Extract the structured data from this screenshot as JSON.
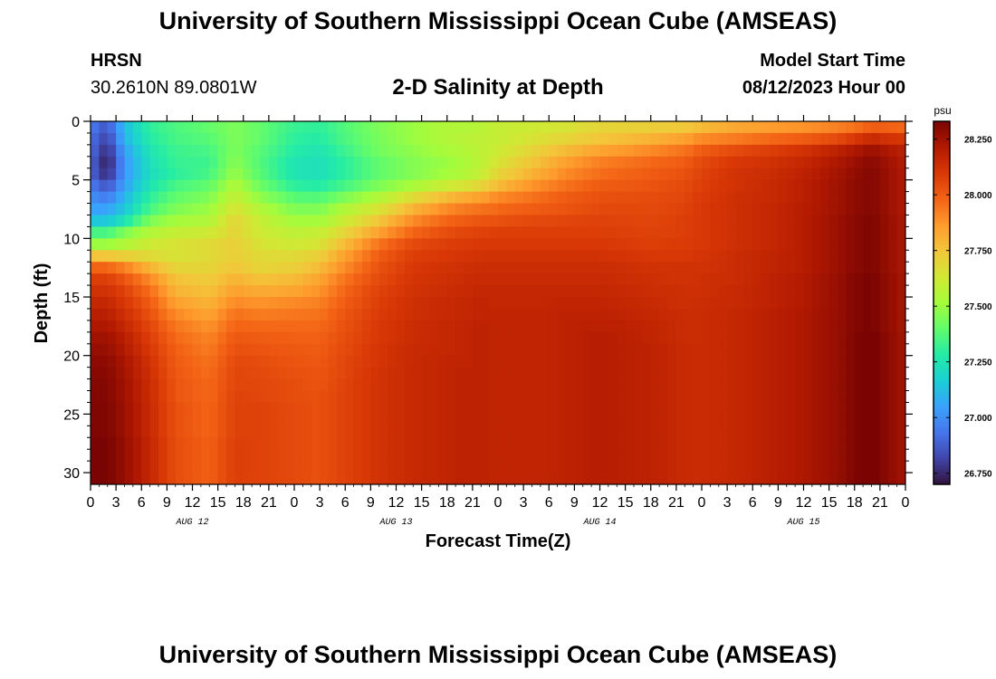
{
  "header": {
    "title": "University of Southern Mississippi Ocean Cube (AMSEAS)",
    "station": "HRSN",
    "coordinates": "30.2610N  89.0801W",
    "subtitle": "2-D Salinity at Depth",
    "model_start_label": "Model Start Time",
    "model_start_value": "08/12/2023 Hour 00"
  },
  "footer": {
    "title": "University of Southern Mississippi Ocean Cube (AMSEAS)"
  },
  "chart_data": {
    "type": "heatmap",
    "title": "2-D Salinity at Depth",
    "xlabel": "Forecast Time(Z)",
    "ylabel": "Depth (ft)",
    "x_tick_labels": [
      "0",
      "3",
      "6",
      "9",
      "12",
      "15",
      "18",
      "21",
      "0",
      "3",
      "6",
      "9",
      "12",
      "15",
      "18",
      "21",
      "0",
      "3",
      "6",
      "9",
      "12",
      "15",
      "18",
      "21",
      "0",
      "3",
      "6",
      "9",
      "12",
      "15",
      "18",
      "21",
      "0"
    ],
    "x_range_hours": [
      0,
      96
    ],
    "date_labels": [
      {
        "label": "AUG 12",
        "hour": 12
      },
      {
        "label": "AUG 13",
        "hour": 36
      },
      {
        "label": "AUG 14",
        "hour": 60
      },
      {
        "label": "AUG 15",
        "hour": 84
      }
    ],
    "y_ticks": [
      "0",
      "5",
      "10",
      "15",
      "20",
      "25",
      "30"
    ],
    "y_range_ft": [
      0,
      31
    ],
    "y_inverted": true,
    "colorbar": {
      "unit": "psu",
      "range": [
        26.7,
        28.33
      ],
      "ticks": [
        "28.250",
        "28.000",
        "27.750",
        "27.500",
        "27.250",
        "27.000",
        "26.750"
      ],
      "colors": [
        "#30123b",
        "#4145ab",
        "#4675ed",
        "#39a2fc",
        "#1bcfd4",
        "#24eca6",
        "#61fc6c",
        "#a4fc3b",
        "#d1e834",
        "#f3c63a",
        "#fe9b2d",
        "#f36315",
        "#d93806",
        "#b11901",
        "#7a0403"
      ]
    },
    "series_hours": [
      0,
      2,
      4,
      7,
      10,
      14,
      17,
      20,
      24,
      27,
      30,
      34,
      38,
      42,
      44,
      46,
      48,
      52,
      56,
      60,
      66,
      70,
      72,
      76,
      80,
      84,
      88,
      90,
      92,
      94,
      96
    ],
    "depths_ft": [
      0,
      1,
      2,
      3,
      4,
      5,
      6,
      7,
      8,
      9,
      10,
      11,
      12,
      13,
      14,
      15,
      16,
      17,
      18,
      19,
      20,
      21,
      22,
      23,
      24,
      25,
      26,
      27,
      28,
      29,
      30,
      31
    ],
    "salinity_psu": [
      [
        26.95,
        26.85,
        27.12,
        27.3,
        27.36,
        27.4,
        27.45,
        27.4,
        27.32,
        27.3,
        27.37,
        27.45,
        27.5,
        27.55,
        27.55,
        27.57,
        27.6,
        27.62,
        27.65,
        27.7,
        27.72,
        27.74,
        27.78,
        27.83,
        27.86,
        27.88,
        27.92,
        27.95,
        28.0,
        27.99,
        27.97
      ],
      [
        26.93,
        26.8,
        27.1,
        27.28,
        27.35,
        27.38,
        27.45,
        27.4,
        27.3,
        27.28,
        27.36,
        27.44,
        27.5,
        27.55,
        27.57,
        27.58,
        27.6,
        27.65,
        27.7,
        27.75,
        27.8,
        27.85,
        27.9,
        27.93,
        27.97,
        28.0,
        28.05,
        28.1,
        28.15,
        28.12,
        28.1
      ],
      [
        26.92,
        26.75,
        27.05,
        27.25,
        27.33,
        27.35,
        27.45,
        27.38,
        27.28,
        27.25,
        27.33,
        27.43,
        27.48,
        27.53,
        27.55,
        27.58,
        27.62,
        27.7,
        27.78,
        27.84,
        27.9,
        27.95,
        28.0,
        28.05,
        28.08,
        28.12,
        28.18,
        28.22,
        28.26,
        28.22,
        28.18
      ],
      [
        26.9,
        26.72,
        27.02,
        27.23,
        27.32,
        27.33,
        27.47,
        27.37,
        27.25,
        27.23,
        27.3,
        27.4,
        27.46,
        27.5,
        27.53,
        27.58,
        27.65,
        27.75,
        27.85,
        27.92,
        27.97,
        28.0,
        28.05,
        28.1,
        28.12,
        28.16,
        28.22,
        28.26,
        28.3,
        28.25,
        28.2
      ],
      [
        26.9,
        26.75,
        27.02,
        27.22,
        27.3,
        27.35,
        27.5,
        27.38,
        27.25,
        27.23,
        27.3,
        27.4,
        27.46,
        27.52,
        27.55,
        27.6,
        27.7,
        27.8,
        27.9,
        27.96,
        28.0,
        28.03,
        28.07,
        28.12,
        28.14,
        28.18,
        28.24,
        28.28,
        28.31,
        28.26,
        28.21
      ],
      [
        26.95,
        26.85,
        27.05,
        27.25,
        27.35,
        27.4,
        27.55,
        27.42,
        27.3,
        27.28,
        27.35,
        27.45,
        27.53,
        27.62,
        27.65,
        27.7,
        27.78,
        27.88,
        27.95,
        28.0,
        28.02,
        28.05,
        28.08,
        28.12,
        28.15,
        28.19,
        28.25,
        28.29,
        28.31,
        28.26,
        28.21
      ],
      [
        27.0,
        26.95,
        27.1,
        27.3,
        27.4,
        27.45,
        27.6,
        27.48,
        27.38,
        27.37,
        27.45,
        27.55,
        27.68,
        27.78,
        27.82,
        27.85,
        27.9,
        27.95,
        28.0,
        28.03,
        28.04,
        28.06,
        28.09,
        28.13,
        28.15,
        28.19,
        28.25,
        28.29,
        28.31,
        28.26,
        28.21
      ],
      [
        27.05,
        27.05,
        27.15,
        27.35,
        27.45,
        27.5,
        27.65,
        27.55,
        27.45,
        27.45,
        27.55,
        27.65,
        27.8,
        27.9,
        27.93,
        27.95,
        27.97,
        28.0,
        28.02,
        28.05,
        28.05,
        28.07,
        28.1,
        28.13,
        28.16,
        28.2,
        28.25,
        28.29,
        28.31,
        28.26,
        28.21
      ],
      [
        27.15,
        27.15,
        27.25,
        27.45,
        27.52,
        27.55,
        27.7,
        27.6,
        27.52,
        27.52,
        27.62,
        27.75,
        27.9,
        27.98,
        28.0,
        28.02,
        28.03,
        28.05,
        28.06,
        28.07,
        28.06,
        28.08,
        28.1,
        28.13,
        28.16,
        28.2,
        28.26,
        28.3,
        28.32,
        28.27,
        28.22
      ],
      [
        27.35,
        27.35,
        27.45,
        27.55,
        27.6,
        27.62,
        27.7,
        27.62,
        27.58,
        27.6,
        27.7,
        27.85,
        27.98,
        28.04,
        28.06,
        28.07,
        28.08,
        28.08,
        28.08,
        28.08,
        28.07,
        28.08,
        28.1,
        28.13,
        28.16,
        28.2,
        28.26,
        28.3,
        28.32,
        28.27,
        28.22
      ],
      [
        27.5,
        27.5,
        27.55,
        27.62,
        27.65,
        27.68,
        27.72,
        27.65,
        27.62,
        27.65,
        27.78,
        27.95,
        28.05,
        28.08,
        28.09,
        28.1,
        28.1,
        28.1,
        28.1,
        28.1,
        28.08,
        28.09,
        28.1,
        28.13,
        28.16,
        28.2,
        28.26,
        28.3,
        28.32,
        28.27,
        28.22
      ],
      [
        27.75,
        27.75,
        27.72,
        27.68,
        27.65,
        27.68,
        27.72,
        27.68,
        27.68,
        27.72,
        27.85,
        28.0,
        28.08,
        28.1,
        28.11,
        28.12,
        28.12,
        28.12,
        28.12,
        28.12,
        28.1,
        28.1,
        28.11,
        28.14,
        28.17,
        28.2,
        28.26,
        28.3,
        28.32,
        28.27,
        28.22
      ],
      [
        27.98,
        27.98,
        27.92,
        27.8,
        27.7,
        27.7,
        27.75,
        27.7,
        27.72,
        27.78,
        27.9,
        28.03,
        28.1,
        28.12,
        28.13,
        28.14,
        28.14,
        28.14,
        28.14,
        28.14,
        28.12,
        28.12,
        28.12,
        28.14,
        28.17,
        28.2,
        28.26,
        28.3,
        28.32,
        28.27,
        28.22
      ],
      [
        28.08,
        28.08,
        28.02,
        27.9,
        27.76,
        27.73,
        27.8,
        27.76,
        27.78,
        27.84,
        27.95,
        28.05,
        28.11,
        28.13,
        28.14,
        28.15,
        28.15,
        28.15,
        28.15,
        28.15,
        28.13,
        28.12,
        28.13,
        28.14,
        28.18,
        28.21,
        28.27,
        28.31,
        28.33,
        28.28,
        28.23
      ],
      [
        28.12,
        28.12,
        28.07,
        27.96,
        27.8,
        27.76,
        27.85,
        27.82,
        27.84,
        27.88,
        27.98,
        28.07,
        28.12,
        28.14,
        28.15,
        28.16,
        28.16,
        28.16,
        28.16,
        28.16,
        28.14,
        28.13,
        28.13,
        28.15,
        28.18,
        28.21,
        28.27,
        28.31,
        28.33,
        28.28,
        28.23
      ],
      [
        28.16,
        28.16,
        28.1,
        28.0,
        27.85,
        27.8,
        27.9,
        27.88,
        27.9,
        27.92,
        28.0,
        28.08,
        28.13,
        28.15,
        28.16,
        28.17,
        28.16,
        28.16,
        28.17,
        28.17,
        28.15,
        28.13,
        28.14,
        28.15,
        28.18,
        28.21,
        28.27,
        28.31,
        28.33,
        28.28,
        28.23
      ],
      [
        28.19,
        28.19,
        28.13,
        28.03,
        27.9,
        27.84,
        27.95,
        27.93,
        27.94,
        27.95,
        28.02,
        28.09,
        28.13,
        28.15,
        28.16,
        28.17,
        28.17,
        28.17,
        28.18,
        28.18,
        28.16,
        28.14,
        28.14,
        28.16,
        28.19,
        28.22,
        28.27,
        28.31,
        28.33,
        28.28,
        28.23
      ],
      [
        28.22,
        28.22,
        28.16,
        28.06,
        27.94,
        27.88,
        27.98,
        27.97,
        27.97,
        27.97,
        28.03,
        28.1,
        28.14,
        28.16,
        28.17,
        28.18,
        28.17,
        28.17,
        28.18,
        28.19,
        28.17,
        28.14,
        28.14,
        28.16,
        28.19,
        28.22,
        28.27,
        28.31,
        28.33,
        28.28,
        28.23
      ],
      [
        28.25,
        28.25,
        28.19,
        28.08,
        27.97,
        27.91,
        28.01,
        28.0,
        27.99,
        27.99,
        28.04,
        28.1,
        28.14,
        28.16,
        28.17,
        28.18,
        28.17,
        28.17,
        28.18,
        28.2,
        28.17,
        28.14,
        28.14,
        28.16,
        28.19,
        28.22,
        28.27,
        28.32,
        28.34,
        28.29,
        28.24
      ],
      [
        28.27,
        28.27,
        28.21,
        28.1,
        27.99,
        27.93,
        28.03,
        28.02,
        28.01,
        28.0,
        28.05,
        28.11,
        28.15,
        28.16,
        28.17,
        28.18,
        28.17,
        28.17,
        28.18,
        28.2,
        28.18,
        28.15,
        28.14,
        28.16,
        28.19,
        28.22,
        28.27,
        28.32,
        28.34,
        28.29,
        28.24
      ],
      [
        28.29,
        28.29,
        28.23,
        28.12,
        28.0,
        27.95,
        28.05,
        28.04,
        28.02,
        28.01,
        28.06,
        28.11,
        28.15,
        28.17,
        28.17,
        28.18,
        28.17,
        28.17,
        28.18,
        28.2,
        28.18,
        28.15,
        28.14,
        28.16,
        28.19,
        28.22,
        28.27,
        28.32,
        28.34,
        28.29,
        28.24
      ],
      [
        28.3,
        28.3,
        28.24,
        28.13,
        28.01,
        27.96,
        28.06,
        28.05,
        28.03,
        28.02,
        28.06,
        28.12,
        28.15,
        28.17,
        28.18,
        28.18,
        28.17,
        28.17,
        28.18,
        28.2,
        28.18,
        28.15,
        28.14,
        28.16,
        28.19,
        28.22,
        28.27,
        28.32,
        28.34,
        28.29,
        28.24
      ],
      [
        28.31,
        28.31,
        28.25,
        28.14,
        28.02,
        27.97,
        28.06,
        28.06,
        28.04,
        28.02,
        28.07,
        28.12,
        28.15,
        28.17,
        28.18,
        28.18,
        28.17,
        28.17,
        28.18,
        28.2,
        28.18,
        28.15,
        28.14,
        28.16,
        28.19,
        28.22,
        28.27,
        28.32,
        28.34,
        28.29,
        28.24
      ],
      [
        28.31,
        28.31,
        28.25,
        28.14,
        28.02,
        27.97,
        28.07,
        28.06,
        28.04,
        28.03,
        28.07,
        28.12,
        28.15,
        28.17,
        28.18,
        28.18,
        28.17,
        28.17,
        28.18,
        28.2,
        28.18,
        28.15,
        28.14,
        28.16,
        28.19,
        28.22,
        28.27,
        28.32,
        28.34,
        28.29,
        28.24
      ],
      [
        28.32,
        28.32,
        28.26,
        28.15,
        28.03,
        27.98,
        28.07,
        28.07,
        28.05,
        28.03,
        28.07,
        28.12,
        28.15,
        28.17,
        28.18,
        28.18,
        28.17,
        28.17,
        28.18,
        28.2,
        28.18,
        28.15,
        28.14,
        28.16,
        28.19,
        28.22,
        28.27,
        28.32,
        28.34,
        28.29,
        28.24
      ],
      [
        28.32,
        28.32,
        28.26,
        28.15,
        28.03,
        27.98,
        28.07,
        28.07,
        28.05,
        28.03,
        28.07,
        28.12,
        28.15,
        28.17,
        28.18,
        28.18,
        28.17,
        28.17,
        28.18,
        28.2,
        28.18,
        28.15,
        28.14,
        28.16,
        28.19,
        28.22,
        28.27,
        28.32,
        28.34,
        28.29,
        28.24
      ],
      [
        28.32,
        28.32,
        28.26,
        28.15,
        28.03,
        27.98,
        28.07,
        28.07,
        28.05,
        28.03,
        28.07,
        28.12,
        28.15,
        28.17,
        28.18,
        28.18,
        28.17,
        28.17,
        28.18,
        28.2,
        28.18,
        28.15,
        28.14,
        28.16,
        28.19,
        28.22,
        28.27,
        28.32,
        28.34,
        28.29,
        28.24
      ],
      [
        28.33,
        28.33,
        28.27,
        28.16,
        28.04,
        27.99,
        28.08,
        28.07,
        28.05,
        28.03,
        28.07,
        28.12,
        28.15,
        28.17,
        28.18,
        28.18,
        28.17,
        28.17,
        28.18,
        28.2,
        28.18,
        28.15,
        28.14,
        28.16,
        28.19,
        28.22,
        28.27,
        28.32,
        28.34,
        28.29,
        28.24
      ],
      [
        28.33,
        28.33,
        28.27,
        28.16,
        28.04,
        27.99,
        28.08,
        28.07,
        28.05,
        28.03,
        28.07,
        28.12,
        28.15,
        28.17,
        28.18,
        28.18,
        28.17,
        28.17,
        28.18,
        28.2,
        28.18,
        28.15,
        28.14,
        28.16,
        28.19,
        28.22,
        28.27,
        28.32,
        28.34,
        28.29,
        28.24
      ],
      [
        28.33,
        28.33,
        28.27,
        28.16,
        28.04,
        27.99,
        28.08,
        28.07,
        28.05,
        28.03,
        28.07,
        28.12,
        28.15,
        28.17,
        28.18,
        28.18,
        28.17,
        28.17,
        28.18,
        28.2,
        28.18,
        28.15,
        28.14,
        28.16,
        28.19,
        28.22,
        28.27,
        28.32,
        28.34,
        28.29,
        28.24
      ],
      [
        28.33,
        28.33,
        28.27,
        28.16,
        28.04,
        27.99,
        28.08,
        28.07,
        28.05,
        28.03,
        28.07,
        28.12,
        28.15,
        28.17,
        28.18,
        28.18,
        28.17,
        28.17,
        28.18,
        28.2,
        28.18,
        28.15,
        28.14,
        28.16,
        28.19,
        28.22,
        28.27,
        28.32,
        28.34,
        28.29,
        28.24
      ],
      [
        28.33,
        28.33,
        28.27,
        28.16,
        28.04,
        27.99,
        28.08,
        28.07,
        28.05,
        28.03,
        28.07,
        28.12,
        28.15,
        28.17,
        28.18,
        28.18,
        28.17,
        28.17,
        28.18,
        28.2,
        28.18,
        28.15,
        28.14,
        28.16,
        28.19,
        28.22,
        28.27,
        28.32,
        28.34,
        28.29,
        28.24
      ]
    ]
  }
}
